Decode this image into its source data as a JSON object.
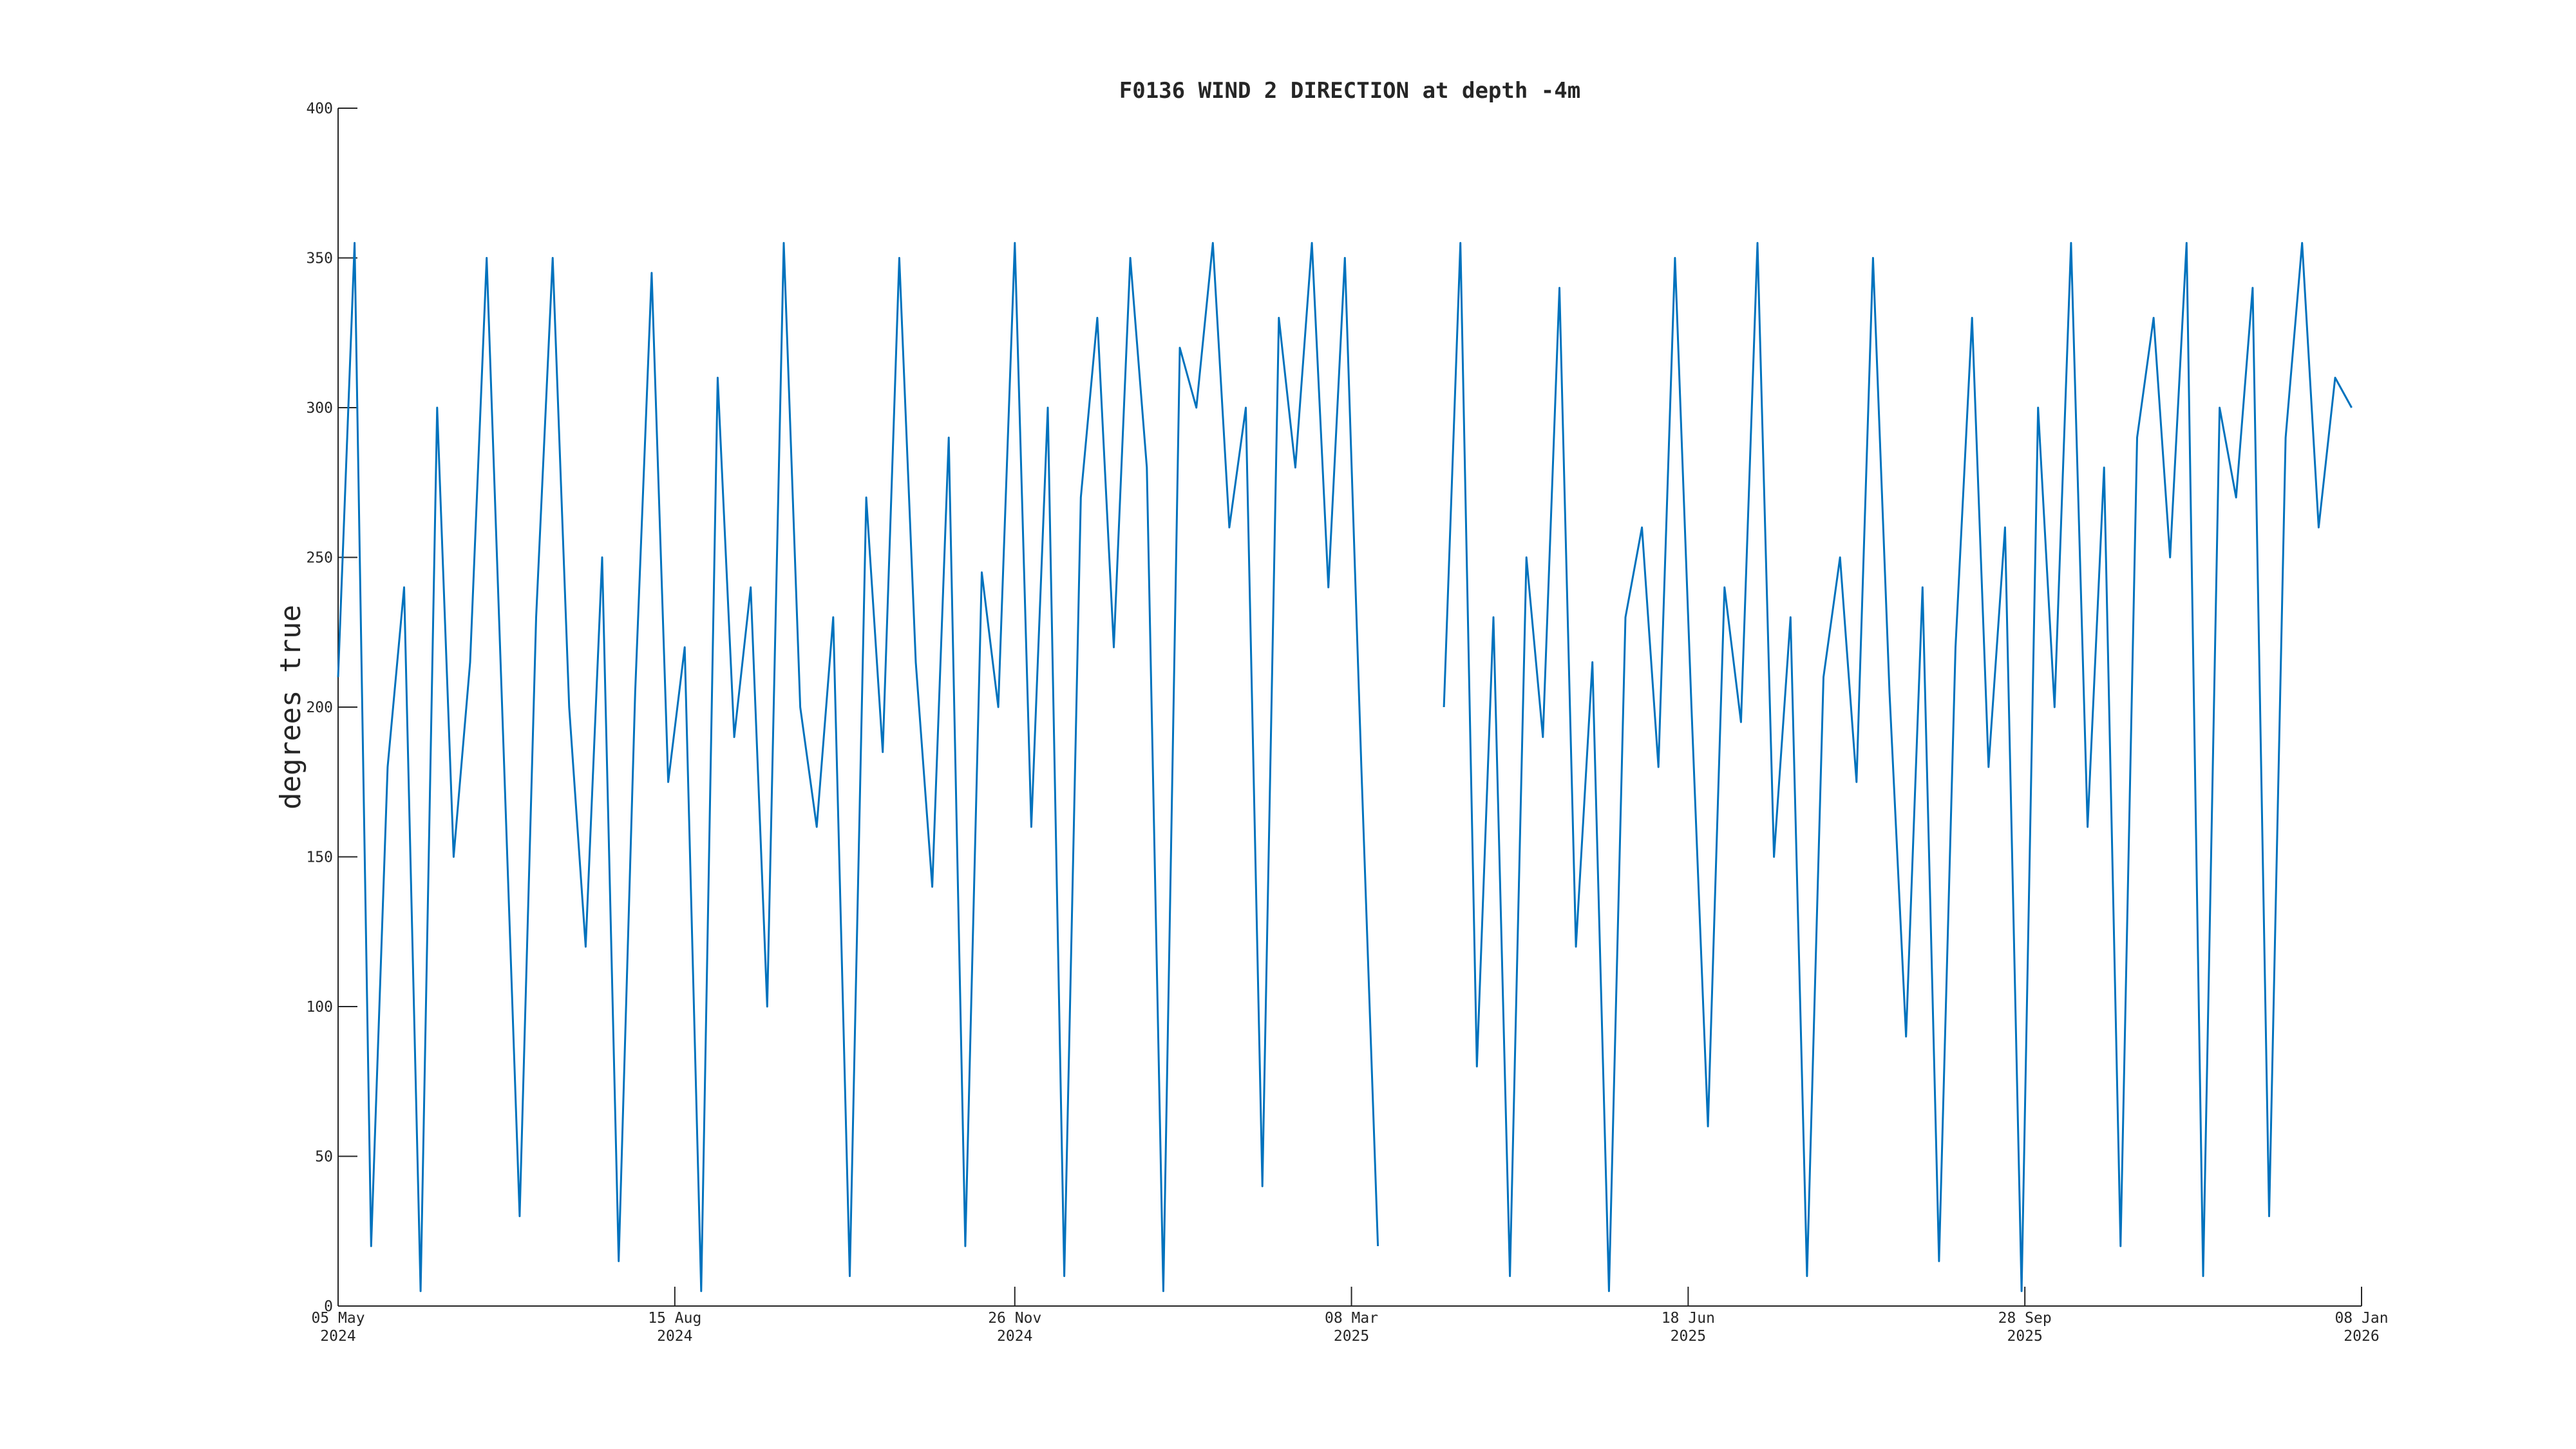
{
  "chart_data": {
    "type": "line",
    "title": "F0136 WIND 2 DIRECTION at depth -4m",
    "y_label": "degrees true",
    "x": [
      "2024-05-05",
      "2024-05-10",
      "2024-05-15",
      "2024-05-20",
      "2024-05-25",
      "2024-05-30",
      "2024-06-04",
      "2024-06-09",
      "2024-06-14",
      "2024-06-19",
      "2024-06-24",
      "2024-06-29",
      "2024-07-04",
      "2024-07-09",
      "2024-07-14",
      "2024-07-19",
      "2024-07-24",
      "2024-07-29",
      "2024-08-03",
      "2024-08-08",
      "2024-08-13",
      "2024-08-18",
      "2024-08-23",
      "2024-08-28",
      "2024-09-02",
      "2024-09-07",
      "2024-09-12",
      "2024-09-17",
      "2024-09-22",
      "2024-09-27",
      "2024-10-02",
      "2024-10-07",
      "2024-10-12",
      "2024-10-17",
      "2024-10-22",
      "2024-10-27",
      "2024-11-01",
      "2024-11-06",
      "2024-11-11",
      "2024-11-16",
      "2024-11-21",
      "2024-11-26",
      "2024-12-01",
      "2024-12-06",
      "2024-12-11",
      "2024-12-16",
      "2024-12-21",
      "2024-12-26",
      "2024-12-31",
      "2025-01-05",
      "2025-01-10",
      "2025-01-15",
      "2025-01-20",
      "2025-01-25",
      "2025-01-30",
      "2025-02-04",
      "2025-02-09",
      "2025-02-14",
      "2025-02-19",
      "2025-02-24",
      "2025-03-01",
      "2025-03-06",
      "2025-03-11",
      "2025-03-16",
      "2025-03-21",
      "2025-03-26",
      "2025-03-31",
      "2025-04-05",
      "2025-04-10",
      "2025-04-15",
      "2025-04-20",
      "2025-04-25",
      "2025-04-30",
      "2025-05-05",
      "2025-05-10",
      "2025-05-15",
      "2025-05-20",
      "2025-05-25",
      "2025-05-30",
      "2025-06-04",
      "2025-06-09",
      "2025-06-14",
      "2025-06-19",
      "2025-06-24",
      "2025-06-29",
      "2025-07-04",
      "2025-07-09",
      "2025-07-14",
      "2025-07-19",
      "2025-07-24",
      "2025-07-29",
      "2025-08-03",
      "2025-08-08",
      "2025-08-13",
      "2025-08-18",
      "2025-08-23",
      "2025-08-28",
      "2025-09-02",
      "2025-09-07",
      "2025-09-12",
      "2025-09-17",
      "2025-09-22",
      "2025-09-27",
      "2025-10-02",
      "2025-10-07",
      "2025-10-12",
      "2025-10-17",
      "2025-10-22",
      "2025-10-27",
      "2025-11-01",
      "2025-11-06",
      "2025-11-11",
      "2025-11-16",
      "2025-11-21",
      "2025-11-26",
      "2025-12-01",
      "2025-12-06",
      "2025-12-11",
      "2025-12-16",
      "2025-12-21",
      "2025-12-26",
      "2025-12-31",
      "2026-01-05"
    ],
    "series": [
      {
        "color": "#0072bd",
        "values": [
          210,
          355,
          20,
          180,
          240,
          5,
          300,
          150,
          215,
          350,
          190,
          30,
          230,
          350,
          200,
          120,
          250,
          15,
          205,
          345,
          175,
          220,
          5,
          310,
          190,
          240,
          100,
          355,
          200,
          160,
          230,
          10,
          270,
          185,
          350,
          215,
          140,
          290,
          20,
          245,
          200,
          355,
          160,
          300,
          10,
          270,
          330,
          220,
          350,
          280,
          5,
          320,
          300,
          355,
          260,
          300,
          40,
          330,
          280,
          355,
          240,
          350,
          180,
          20,
          null,
          null,
          null,
          200,
          355,
          80,
          230,
          10,
          250,
          190,
          340,
          120,
          215,
          5,
          230,
          260,
          180,
          350,
          200,
          60,
          240,
          195,
          355,
          150,
          230,
          10,
          210,
          250,
          175,
          350,
          205,
          90,
          240,
          15,
          220,
          330,
          180,
          260,
          5,
          300,
          200,
          355,
          160,
          280,
          20,
          290,
          330,
          250,
          355,
          10,
          300,
          270,
          340,
          30,
          290,
          355,
          260,
          310,
          300
        ]
      }
    ],
    "xlim": [
      "2024-05-05",
      "2026-01-08"
    ],
    "xticks": [
      {
        "value": "2024-05-05",
        "label": [
          "05 May",
          "2024"
        ]
      },
      {
        "value": "2024-08-15",
        "label": [
          "15 Aug",
          "2024"
        ]
      },
      {
        "value": "2024-11-26",
        "label": [
          "26 Nov",
          "2024"
        ]
      },
      {
        "value": "2025-03-08",
        "label": [
          "08 Mar",
          "2025"
        ]
      },
      {
        "value": "2025-06-18",
        "label": [
          "18 Jun",
          "2025"
        ]
      },
      {
        "value": "2025-09-28",
        "label": [
          "28 Sep",
          "2025"
        ]
      },
      {
        "value": "2026-01-08",
        "label": [
          "08 Jan",
          "2026"
        ]
      }
    ],
    "ylim": [
      0,
      400
    ],
    "yticks": [
      0,
      50,
      100,
      150,
      200,
      250,
      300,
      350,
      400
    ]
  }
}
